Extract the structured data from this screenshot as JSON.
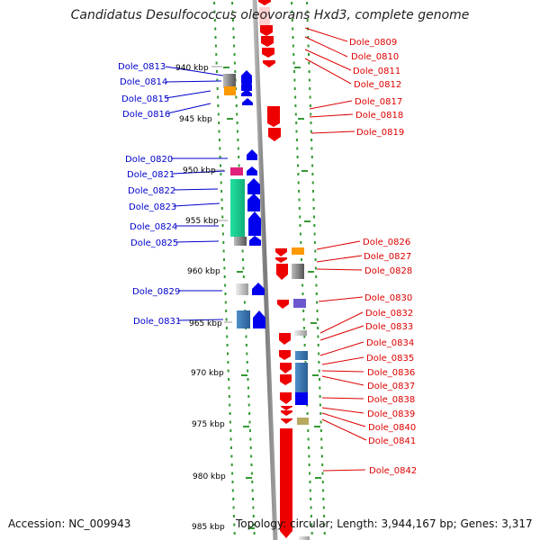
{
  "title": "Candidatus Desulfococcus oleovorans Hxd3, complete genome",
  "accession": "Accession: NC_009943",
  "summary": "Topology: circular; Length: 3,944,167 bp; Genes: 3,317",
  "colors": {
    "forward_label": "#0000cc",
    "reverse_label": "#dd0000",
    "tick": "#339933",
    "backbone": "#8a8a8a"
  },
  "scale_labels": [
    "940 kbp",
    "945 kbp",
    "950 kbp",
    "955 kbp",
    "960 kbp",
    "965 kbp",
    "970 kbp",
    "975 kbp",
    "980 kbp",
    "985 kbp"
  ],
  "forward_genes": [
    "Dole_0813",
    "Dole_0814",
    "Dole_0815",
    "Dole_0816",
    "Dole_0820",
    "Dole_0821",
    "Dole_0822",
    "Dole_0823",
    "Dole_0824",
    "Dole_0825",
    "Dole_0829",
    "Dole_0831"
  ],
  "reverse_genes": [
    "Dole_0809",
    "Dole_0810",
    "Dole_0811",
    "Dole_0812",
    "Dole_0817",
    "Dole_0818",
    "Dole_0819",
    "Dole_0826",
    "Dole_0827",
    "Dole_0828",
    "Dole_0830",
    "Dole_0832",
    "Dole_0833",
    "Dole_0834",
    "Dole_0835",
    "Dole_0836",
    "Dole_0837",
    "Dole_0838",
    "Dole_0839",
    "Dole_0840",
    "Dole_0841",
    "Dole_0842"
  ]
}
